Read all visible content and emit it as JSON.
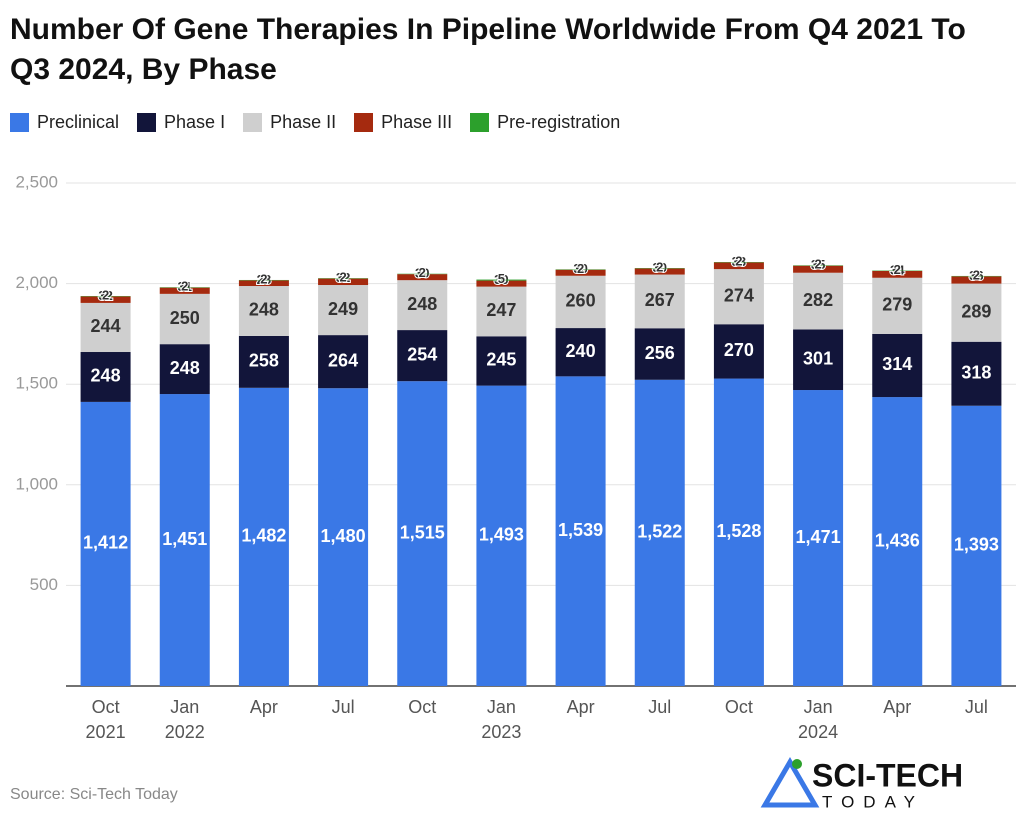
{
  "chart_data": {
    "type": "stacked-bar",
    "title": "Number Of Gene Therapies In Pipeline Worldwide From Q4 2021 To Q3 2024, By Phase",
    "categories": [
      [
        "Oct",
        "2021"
      ],
      [
        "Jan",
        "2022"
      ],
      [
        "Apr"
      ],
      [
        "Jul"
      ],
      [
        "Oct"
      ],
      [
        "Jan",
        "2023"
      ],
      [
        "Apr"
      ],
      [
        "Jul"
      ],
      [
        "Oct"
      ],
      [
        "Jan",
        "2024"
      ],
      [
        "Apr"
      ],
      [
        "Jul"
      ]
    ],
    "series": [
      {
        "name": "Preclinical",
        "color": "#3a78e6",
        "label_color": "#ffffff",
        "values": [
          1412,
          1451,
          1482,
          1480,
          1515,
          1493,
          1539,
          1522,
          1528,
          1471,
          1436,
          1393
        ],
        "value_labels": [
          "1,412",
          "1,451",
          "1,482",
          "1,480",
          "1,515",
          "1,493",
          "1,539",
          "1,522",
          "1,528",
          "1,471",
          "1,436",
          "1,393"
        ]
      },
      {
        "name": "Phase I",
        "color": "#12153a",
        "label_color": "#ffffff",
        "values": [
          248,
          248,
          258,
          264,
          254,
          245,
          240,
          256,
          270,
          301,
          314,
          318
        ]
      },
      {
        "name": "Phase II",
        "color": "#cfcfcf",
        "label_color": "#333333",
        "values": [
          244,
          250,
          248,
          249,
          248,
          247,
          260,
          267,
          274,
          282,
          279,
          289
        ]
      },
      {
        "name": "Phase III",
        "color": "#a52a0f",
        "label_color": "#333333",
        "values": [
          32,
          31,
          28,
          32,
          30,
          30,
          30,
          30,
          33,
          35,
          34,
          36
        ]
      },
      {
        "name": "Pre-registration",
        "color": "#2ca02c",
        "label_color": "#333333",
        "values": [
          2,
          2,
          2,
          2,
          2,
          5,
          2,
          2,
          2,
          2,
          2,
          2
        ]
      }
    ],
    "ylim": [
      0,
      2500
    ],
    "yticks": [
      500,
      {
        "value": 1000,
        "label": "1,000"
      },
      {
        "value": 1500,
        "label": "1,500"
      },
      {
        "value": 2000,
        "label": "2,000"
      },
      {
        "value": 2500,
        "label": "2,500"
      }
    ],
    "grid": true,
    "source": "Source: Sci-Tech Today"
  },
  "logo": {
    "line1": "SCI-TECH",
    "line2": "TODAY"
  }
}
